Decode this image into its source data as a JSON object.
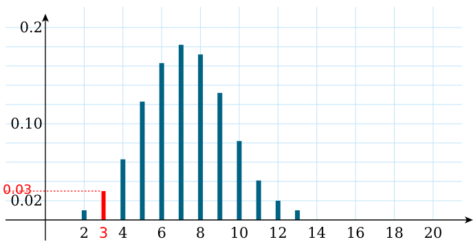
{
  "chart_data": {
    "type": "bar",
    "title": "",
    "xlabel": "",
    "ylabel": "",
    "x": [
      2,
      3,
      4,
      5,
      6,
      7,
      8,
      9,
      10,
      11,
      12,
      13
    ],
    "values": [
      0.01,
      0.03,
      0.063,
      0.123,
      0.163,
      0.182,
      0.172,
      0.132,
      0.082,
      0.041,
      0.02,
      0.01
    ],
    "xlim": [
      0,
      22
    ],
    "ylim": [
      0,
      0.21
    ],
    "x_tick_labels": [
      "2",
      "4",
      "6",
      "8",
      "10",
      "12",
      "14",
      "16",
      "18",
      "20"
    ],
    "y_tick_labels": [
      {
        "value": 0.02,
        "label": "0.02"
      },
      {
        "value": 0.1,
        "label": "0.10"
      },
      {
        "value": 0.2,
        "label": "0.2"
      }
    ],
    "grid": true,
    "highlight": {
      "x": 3,
      "x_label": "3",
      "y": 0.03,
      "y_label": "0.03"
    },
    "colors": {
      "bar": "#006384",
      "highlight": "#ff0000",
      "grid": "#bfe3f8",
      "axis": "#000000"
    }
  }
}
